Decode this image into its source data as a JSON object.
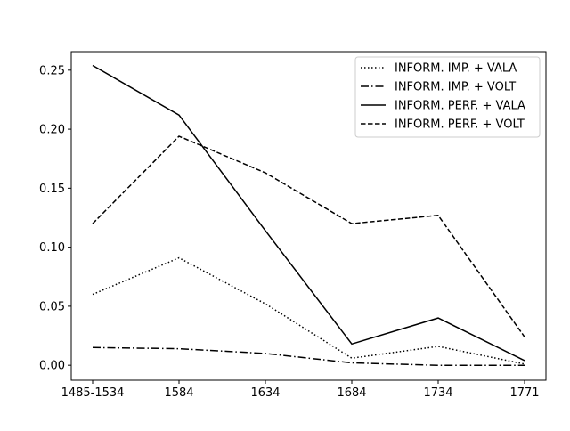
{
  "chart_data": {
    "type": "line",
    "title": "",
    "xlabel": "",
    "ylabel": "",
    "categories": [
      "1485-1534",
      "1584",
      "1634",
      "1684",
      "1734",
      "1771"
    ],
    "ylim": [
      -0.0127,
      0.2657
    ],
    "yticks": [
      0.0,
      0.05,
      0.1,
      0.15,
      0.2,
      0.25
    ],
    "ytick_labels": [
      "0.00",
      "0.05",
      "0.10",
      "0.15",
      "0.20",
      "0.25"
    ],
    "grid": false,
    "legend_position": "top-right",
    "series": [
      {
        "name": "INFORM. IMP. + VALA",
        "style": "dotted",
        "color": "#000000",
        "values": [
          0.06,
          0.091,
          0.052,
          0.006,
          0.016,
          0.001
        ]
      },
      {
        "name": "INFORM. IMP. + VOLT",
        "style": "dashdot",
        "color": "#000000",
        "values": [
          0.015,
          0.014,
          0.01,
          0.002,
          0.0,
          0.0
        ]
      },
      {
        "name": "INFORM. PERF. + VALA",
        "style": "solid",
        "color": "#000000",
        "values": [
          0.254,
          0.212,
          0.114,
          0.018,
          0.04,
          0.004
        ]
      },
      {
        "name": "INFORM. PERF. + VOLT",
        "style": "dashed",
        "color": "#000000",
        "values": [
          0.12,
          0.194,
          0.163,
          0.12,
          0.127,
          0.024
        ]
      }
    ]
  }
}
